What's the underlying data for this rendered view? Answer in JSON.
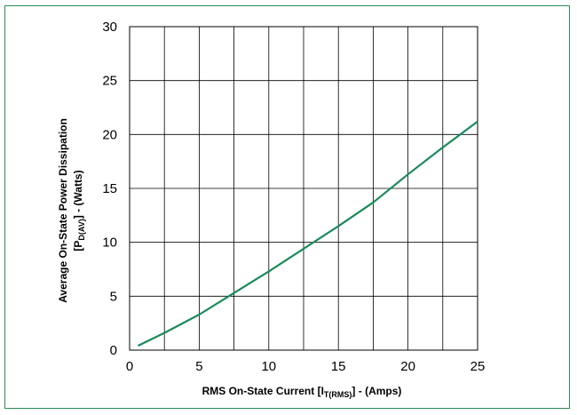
{
  "chart_data": {
    "type": "line",
    "title": "",
    "xlabel": {
      "main": "RMS On-State Current [I",
      "sub": "T(RMS)",
      "tail": "] - (Amps)"
    },
    "ylabel": {
      "line1": "Average On-State Power Dissipation",
      "line2_main": "[P",
      "line2_sub": "D(AV)",
      "line2_tail": "] - (Watts)"
    },
    "xlim": [
      0,
      25
    ],
    "ylim": [
      0,
      30
    ],
    "x_ticks": [
      0,
      5,
      10,
      15,
      20,
      25
    ],
    "y_ticks": [
      0,
      5,
      10,
      15,
      20,
      25,
      30
    ],
    "grid": true,
    "line_color": "#1a8a5a",
    "frame_color": "#2e8b57",
    "series": [
      {
        "x": [
          0.6,
          2.5,
          5,
          7.5,
          10,
          12.5,
          15,
          17.5,
          20,
          22.5,
          25
        ],
        "y": [
          0.4,
          1.6,
          3.3,
          5.3,
          7.3,
          9.4,
          11.5,
          13.7,
          16.3,
          18.8,
          21.2
        ]
      }
    ]
  }
}
